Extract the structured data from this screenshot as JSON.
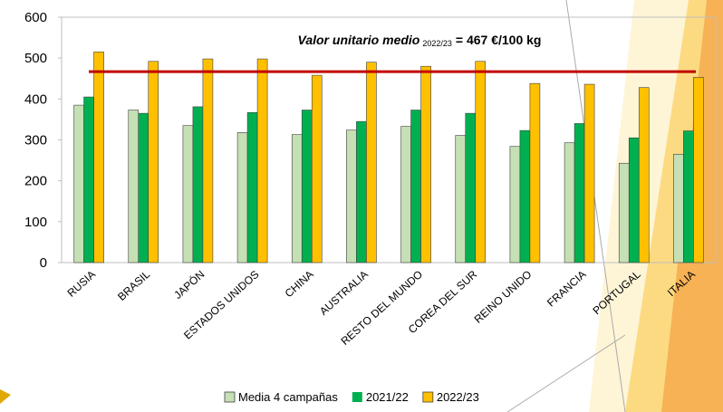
{
  "chart_data": {
    "type": "bar",
    "categories": [
      "RUSIA",
      "BRASIL",
      "JAPÓN",
      "ESTADOS UNIDOS",
      "CHINA",
      "AUSTRALIA",
      "RESTO DEL MUNDO",
      "COREA DEL SUR",
      "REINO UNIDO",
      "FRANCIA",
      "PORTUGAL",
      "ITALIA"
    ],
    "series": [
      {
        "name": "Media 4 campañas",
        "color": "#c5e0b4",
        "values": [
          385,
          373,
          335,
          318,
          313,
          324,
          333,
          311,
          284,
          293,
          243,
          265
        ]
      },
      {
        "name": "2021/22",
        "color": "#00b050",
        "values": [
          405,
          365,
          381,
          367,
          373,
          345,
          373,
          365,
          323,
          340,
          305,
          322
        ]
      },
      {
        "name": "2022/23",
        "color": "#ffc000",
        "values": [
          515,
          492,
          498,
          498,
          458,
          490,
          480,
          492,
          438,
          436,
          428,
          453
        ]
      }
    ],
    "reference_line": {
      "value": 467,
      "color": "#c00000",
      "label_main": "Valor unitario medio",
      "label_sub": "2022/23",
      "label_tail": "= 467 €/100 kg"
    },
    "ylim": [
      0,
      600
    ],
    "yticks": [
      0,
      100,
      200,
      300,
      400,
      500,
      600
    ],
    "grid": false,
    "legend": "bottom"
  }
}
